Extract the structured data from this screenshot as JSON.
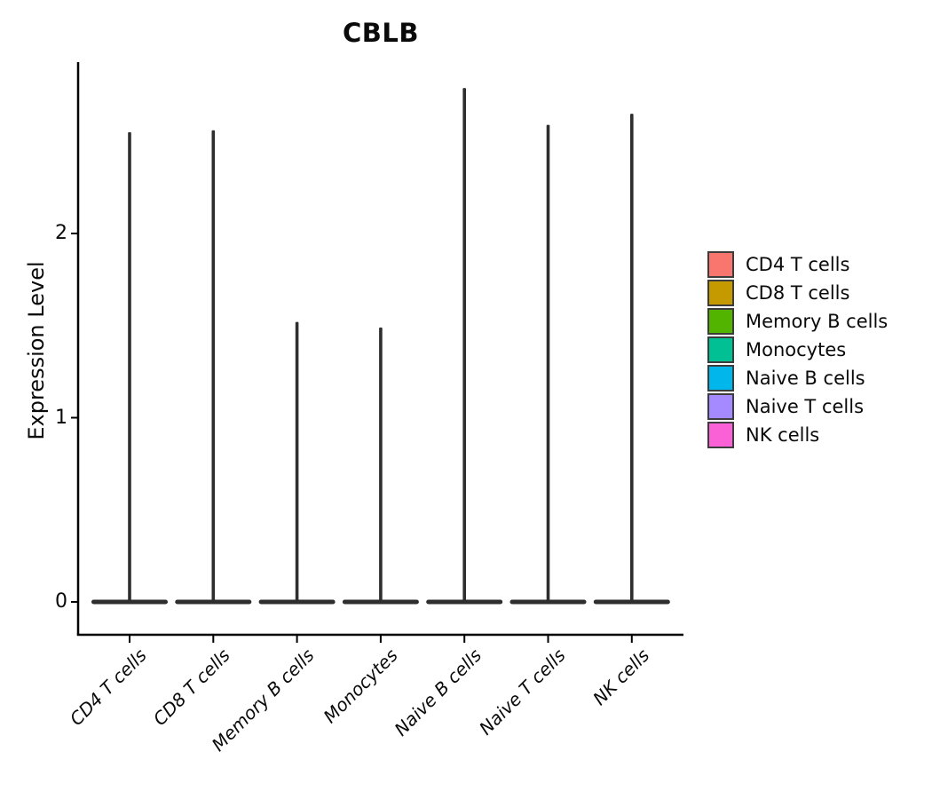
{
  "page": {
    "background": "#FFFFFF"
  },
  "chart_data": {
    "type": "violin",
    "title": "CBLB",
    "ylabel": "Expression Level",
    "xlabel": "",
    "grid": false,
    "legend_position": "right",
    "yticks": [
      0,
      1,
      2
    ],
    "ylim": [
      -0.08,
      2.93
    ],
    "categories": [
      "CD4 T cells",
      "CD8 T cells",
      "Memory B cells",
      "Monocytes",
      "Naive B cells",
      "Naive T cells",
      "NK cells"
    ],
    "violins": [
      {
        "label": "CD4 T cells",
        "color": "#F8766D",
        "max_expression": 2.55,
        "density_mode": 0
      },
      {
        "label": "CD8 T cells",
        "color": "#C49A00",
        "max_expression": 2.56,
        "density_mode": 0
      },
      {
        "label": "Memory B cells",
        "color": "#53B400",
        "max_expression": 1.52,
        "density_mode": 0
      },
      {
        "label": "Monocytes",
        "color": "#00C094",
        "max_expression": 1.49,
        "density_mode": 0
      },
      {
        "label": "Naive B cells",
        "color": "#00B6EB",
        "max_expression": 2.79,
        "density_mode": 0
      },
      {
        "label": "Naive T cells",
        "color": "#A58AFF",
        "max_expression": 2.59,
        "density_mode": 0
      },
      {
        "label": "NK cells",
        "color": "#FB61D7",
        "max_expression": 2.65,
        "density_mode": 0
      }
    ],
    "legend": [
      {
        "label": "CD4 T cells",
        "color": "#F8766D"
      },
      {
        "label": "CD8 T cells",
        "color": "#C49A00"
      },
      {
        "label": "Memory B cells",
        "color": "#53B400"
      },
      {
        "label": "Monocytes",
        "color": "#00C094"
      },
      {
        "label": "Naive B cells",
        "color": "#00B6EB"
      },
      {
        "label": "Naive T cells",
        "color": "#A58AFF"
      },
      {
        "label": "NK cells",
        "color": "#FB61D7"
      }
    ],
    "violin_outline_color": "#2E2E2E",
    "axis_color": "#000000"
  }
}
